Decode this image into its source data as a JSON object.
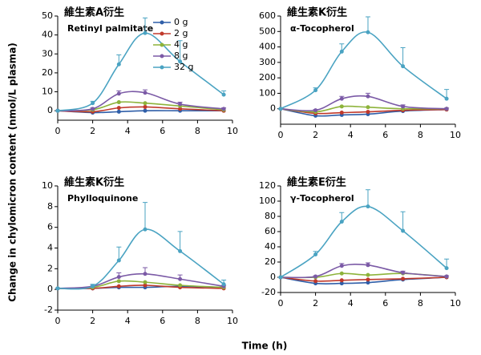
{
  "xlabel": "Time (h)",
  "ylabel": "Change in chylomicron content (nmol/L plasma)",
  "chart_data": [
    {
      "type": "line",
      "title": "維生素A衍生",
      "subtitle": "Retinyl palmitate",
      "legend": "upper center",
      "x": [
        0,
        2,
        3.5,
        5,
        7,
        9.5
      ],
      "xlim": [
        0,
        10
      ],
      "xticks": [
        0,
        2,
        4,
        6,
        8,
        10
      ],
      "ylim": [
        -5,
        50
      ],
      "yticks": [
        0,
        10,
        20,
        30,
        40,
        50
      ],
      "series": [
        {
          "name": "0 g",
          "color": "#2f5ea8",
          "values": [
            0,
            -1,
            -0.5,
            0,
            0,
            0
          ]
        },
        {
          "name": "2 g",
          "color": "#c0392b",
          "values": [
            0,
            -0.5,
            1.5,
            2,
            1,
            0
          ]
        },
        {
          "name": "4 g",
          "color": "#8db33a",
          "values": [
            0,
            0.5,
            4.5,
            4,
            2.5,
            0.5
          ]
        },
        {
          "name": "8 g",
          "color": "#7b5aa6",
          "values": [
            0,
            1,
            9,
            9.5,
            3.5,
            1
          ],
          "errors": [
            0,
            0.5,
            1.5,
            1.5,
            1,
            0.5
          ]
        },
        {
          "name": "32 g",
          "color": "#4aa3c2",
          "values": [
            0,
            4,
            24.5,
            41,
            26,
            8.5
          ],
          "errors": [
            0,
            1,
            5,
            8,
            11,
            2
          ]
        }
      ]
    },
    {
      "type": "line",
      "title": "維生素K衍生",
      "subtitle": "α-Tocopherol",
      "x": [
        0,
        2,
        3.5,
        5,
        7,
        9.5
      ],
      "xlim": [
        0,
        10
      ],
      "xticks": [
        0,
        2,
        4,
        6,
        8,
        10
      ],
      "ylim": [
        -100,
        600
      ],
      "yticks": [
        0,
        100,
        200,
        300,
        400,
        500,
        600
      ],
      "series": [
        {
          "name": "0 g",
          "color": "#2f5ea8",
          "values": [
            0,
            -45,
            -40,
            -35,
            -15,
            -5
          ]
        },
        {
          "name": "2 g",
          "color": "#c0392b",
          "values": [
            0,
            -30,
            -25,
            -20,
            -10,
            -5
          ]
        },
        {
          "name": "4 g",
          "color": "#8db33a",
          "values": [
            0,
            -20,
            15,
            10,
            0,
            0
          ]
        },
        {
          "name": "8 g",
          "color": "#7b5aa6",
          "values": [
            0,
            -10,
            65,
            80,
            15,
            0
          ],
          "errors": [
            0,
            5,
            15,
            20,
            10,
            5
          ]
        },
        {
          "name": "32 g",
          "color": "#4aa3c2",
          "values": [
            0,
            120,
            370,
            495,
            275,
            65
          ],
          "errors": [
            0,
            15,
            50,
            100,
            120,
            60
          ]
        }
      ]
    },
    {
      "type": "line",
      "title": "維生素K衍生",
      "subtitle": "Phylloquinone",
      "x": [
        0,
        2,
        3.5,
        5,
        7,
        9.5
      ],
      "xlim": [
        0,
        10
      ],
      "xticks": [
        0,
        2,
        4,
        6,
        8,
        10
      ],
      "ylim": [
        -2,
        10
      ],
      "yticks": [
        -2,
        0,
        2,
        4,
        6,
        8,
        10
      ],
      "series": [
        {
          "name": "0 g",
          "color": "#2f5ea8",
          "values": [
            0.1,
            0.1,
            0.2,
            0.2,
            0.3,
            0.2
          ]
        },
        {
          "name": "2 g",
          "color": "#c0392b",
          "values": [
            0.1,
            0.1,
            0.3,
            0.4,
            0.2,
            0.1
          ]
        },
        {
          "name": "4 g",
          "color": "#8db33a",
          "values": [
            0.1,
            0.2,
            0.8,
            0.7,
            0.4,
            0.2
          ]
        },
        {
          "name": "8 g",
          "color": "#7b5aa6",
          "values": [
            0.1,
            0.3,
            1.2,
            1.5,
            1,
            0.3
          ],
          "errors": [
            0,
            0.1,
            0.4,
            0.6,
            0.4,
            0.1
          ]
        },
        {
          "name": "32 g",
          "color": "#4aa3c2",
          "values": [
            0.1,
            0.3,
            2.8,
            5.8,
            3.7,
            0.5
          ],
          "errors": [
            0,
            0.2,
            1.3,
            2.6,
            1.9,
            0.4
          ]
        }
      ]
    },
    {
      "type": "line",
      "title": "維生素E衍生",
      "subtitle": "γ-Tocopherol",
      "x": [
        0,
        2,
        3.5,
        5,
        7,
        9.5
      ],
      "xlim": [
        0,
        10
      ],
      "xticks": [
        0,
        2,
        4,
        6,
        8,
        10
      ],
      "ylim": [
        -20,
        120
      ],
      "yticks": [
        -20,
        0,
        20,
        40,
        60,
        80,
        100,
        120
      ],
      "series": [
        {
          "name": "0 g",
          "color": "#2f5ea8",
          "values": [
            0,
            -8,
            -8,
            -7,
            -3,
            0
          ]
        },
        {
          "name": "2 g",
          "color": "#c0392b",
          "values": [
            0,
            -5,
            -4,
            -3,
            -2,
            0
          ]
        },
        {
          "name": "4 g",
          "color": "#8db33a",
          "values": [
            0,
            0,
            5,
            3,
            5,
            1
          ]
        },
        {
          "name": "8 g",
          "color": "#7b5aa6",
          "values": [
            0,
            1,
            15,
            16,
            6,
            1
          ],
          "errors": [
            0,
            1,
            3,
            3,
            2,
            1
          ]
        },
        {
          "name": "32 g",
          "color": "#4aa3c2",
          "values": [
            0,
            30,
            73,
            93,
            61,
            12
          ],
          "errors": [
            0,
            4,
            12,
            22,
            25,
            12
          ]
        }
      ]
    }
  ]
}
